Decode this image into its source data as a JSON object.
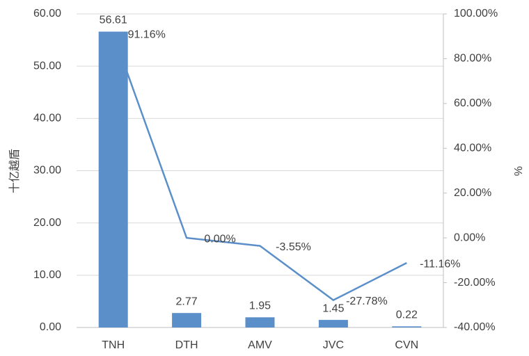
{
  "chart_data": {
    "type": "bar_line",
    "categories": [
      "TNH",
      "DTH",
      "AMV",
      "JVC",
      "CVN"
    ],
    "ylabel": "十亿越盾",
    "y2label": "%",
    "series": [
      {
        "type": "bar",
        "color": "#5b8fc9",
        "values": [
          56.61,
          2.77,
          1.95,
          1.45,
          0.22
        ]
      },
      {
        "type": "line",
        "axis": "y2",
        "color": "#5b8fc9",
        "values": [
          91.16,
          0,
          -3.55,
          -27.78,
          -11.16
        ],
        "value_labels": [
          "91.16%",
          "0.00%",
          "-3.55%",
          "-27.78%",
          "-11.16%"
        ]
      }
    ],
    "ylim": [
      0,
      60
    ],
    "yticks": [
      {
        "value": 0,
        "label": "0.00"
      },
      {
        "value": 10,
        "label": "10.00"
      },
      {
        "value": 20,
        "label": "20.00"
      },
      {
        "value": 30,
        "label": "30.00"
      },
      {
        "value": 40,
        "label": "40.00"
      },
      {
        "value": 50,
        "label": "50.00"
      },
      {
        "value": 60,
        "label": "60.00"
      }
    ],
    "y2lim": [
      -40,
      100
    ],
    "y2ticks": [
      {
        "value": -40,
        "label": "-40.00%"
      },
      {
        "value": -20,
        "label": "-20.00%"
      },
      {
        "value": 0,
        "label": "0.00%"
      },
      {
        "value": 20,
        "label": "20.00%"
      },
      {
        "value": 40,
        "label": "40.00%"
      },
      {
        "value": 60,
        "label": "60.00%"
      },
      {
        "value": 80,
        "label": "80.00%"
      },
      {
        "value": 100,
        "label": "100.00%"
      }
    ],
    "grid": true
  }
}
